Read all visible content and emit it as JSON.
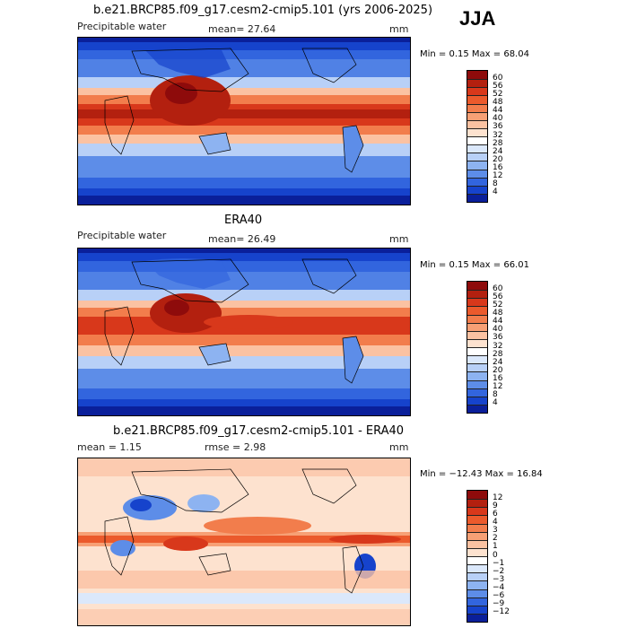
{
  "season": "JJA",
  "panels": [
    {
      "title": "b.e21.BRCP85.f09_g17.cesm2-cmip5.101 (yrs 2006-2025)",
      "field_label": "Precipitable water",
      "stat_text": "mean=  27.64",
      "units": "mm",
      "minmax": "Min =   0.15 Max =  68.04"
    },
    {
      "title": "ERA40",
      "field_label": "Precipitable water",
      "stat_text": "mean=  26.49",
      "units": "mm",
      "minmax": "Min =   0.15 Max =  66.01"
    },
    {
      "title": "b.e21.BRCP85.f09_g17.cesm2-cmip5.101 - ERA40",
      "mean_text": "mean =   1.15",
      "rmse_text": "rmse =   2.98",
      "units": "mm",
      "minmax": "Min = −12.43 Max =  16.84"
    }
  ],
  "colorbars": {
    "absolute": {
      "labels": [
        "60",
        "56",
        "52",
        "48",
        "44",
        "40",
        "36",
        "32",
        "28",
        "24",
        "20",
        "16",
        "12",
        "8",
        "4"
      ],
      "colors": [
        "#8e0b0b",
        "#b3200f",
        "#d8381b",
        "#eb5a2c",
        "#f27d4c",
        "#f7a075",
        "#fbc2a2",
        "#fde2cf",
        "#ffffff",
        "#dbe8fb",
        "#b8d0f7",
        "#8db3f1",
        "#5d8de8",
        "#3265de",
        "#1643cc",
        "#0a1f9a"
      ]
    },
    "difference": {
      "labels": [
        "12",
        "9",
        "6",
        "4",
        "3",
        "2",
        "1",
        "0",
        "−1",
        "−2",
        "−3",
        "−4",
        "−6",
        "−9",
        "−12"
      ],
      "colors": [
        "#8e0b0b",
        "#b3200f",
        "#d8381b",
        "#eb5a2c",
        "#f27d4c",
        "#f7a075",
        "#fbc2a2",
        "#fde2cf",
        "#ffffff",
        "#dbe8fb",
        "#b8d0f7",
        "#8db3f1",
        "#5d8de8",
        "#3265de",
        "#1643cc",
        "#0a1f9a"
      ]
    }
  }
}
